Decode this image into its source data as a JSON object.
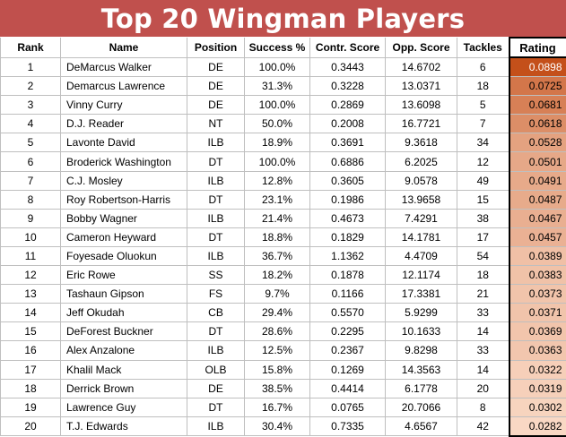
{
  "title": "Top 20 Wingman Players",
  "columns": [
    "Rank",
    "Name",
    "Position",
    "Success %",
    "Contr. Score",
    "Opp. Score",
    "Tackles",
    "Rating"
  ],
  "colors": {
    "banner": "#c0504d",
    "rating_high": "#c4501a",
    "rating_low": "#f9d8c4"
  },
  "rows": [
    {
      "rank": "1",
      "name": "DeMarcus Walker",
      "position": "DE",
      "success": "100.0%",
      "contr": "0.3443",
      "opp": "14.6702",
      "tackles": "6",
      "rating": "0.0898"
    },
    {
      "rank": "2",
      "name": "Demarcus Lawrence",
      "position": "DE",
      "success": "31.3%",
      "contr": "0.3228",
      "opp": "13.0371",
      "tackles": "18",
      "rating": "0.0725"
    },
    {
      "rank": "3",
      "name": "Vinny Curry",
      "position": "DE",
      "success": "100.0%",
      "contr": "0.2869",
      "opp": "13.6098",
      "tackles": "5",
      "rating": "0.0681"
    },
    {
      "rank": "4",
      "name": "D.J. Reader",
      "position": "NT",
      "success": "50.0%",
      "contr": "0.2008",
      "opp": "16.7721",
      "tackles": "7",
      "rating": "0.0618"
    },
    {
      "rank": "5",
      "name": "Lavonte David",
      "position": "ILB",
      "success": "18.9%",
      "contr": "0.3691",
      "opp": "9.3618",
      "tackles": "34",
      "rating": "0.0528"
    },
    {
      "rank": "6",
      "name": "Broderick Washington",
      "position": "DT",
      "success": "100.0%",
      "contr": "0.6886",
      "opp": "6.2025",
      "tackles": "12",
      "rating": "0.0501"
    },
    {
      "rank": "7",
      "name": "C.J. Mosley",
      "position": "ILB",
      "success": "12.8%",
      "contr": "0.3605",
      "opp": "9.0578",
      "tackles": "49",
      "rating": "0.0491"
    },
    {
      "rank": "8",
      "name": "Roy Robertson-Harris",
      "position": "DT",
      "success": "23.1%",
      "contr": "0.1986",
      "opp": "13.9658",
      "tackles": "15",
      "rating": "0.0487"
    },
    {
      "rank": "9",
      "name": "Bobby Wagner",
      "position": "ILB",
      "success": "21.4%",
      "contr": "0.4673",
      "opp": "7.4291",
      "tackles": "38",
      "rating": "0.0467"
    },
    {
      "rank": "10",
      "name": "Cameron Heyward",
      "position": "DT",
      "success": "18.8%",
      "contr": "0.1829",
      "opp": "14.1781",
      "tackles": "17",
      "rating": "0.0457"
    },
    {
      "rank": "11",
      "name": "Foyesade Oluokun",
      "position": "ILB",
      "success": "36.7%",
      "contr": "1.1362",
      "opp": "4.4709",
      "tackles": "54",
      "rating": "0.0389"
    },
    {
      "rank": "12",
      "name": "Eric Rowe",
      "position": "SS",
      "success": "18.2%",
      "contr": "0.1878",
      "opp": "12.1174",
      "tackles": "18",
      "rating": "0.0383"
    },
    {
      "rank": "13",
      "name": "Tashaun Gipson",
      "position": "FS",
      "success": "9.7%",
      "contr": "0.1166",
      "opp": "17.3381",
      "tackles": "21",
      "rating": "0.0373"
    },
    {
      "rank": "14",
      "name": "Jeff Okudah",
      "position": "CB",
      "success": "29.4%",
      "contr": "0.5570",
      "opp": "5.9299",
      "tackles": "33",
      "rating": "0.0371"
    },
    {
      "rank": "15",
      "name": "DeForest Buckner",
      "position": "DT",
      "success": "28.6%",
      "contr": "0.2295",
      "opp": "10.1633",
      "tackles": "14",
      "rating": "0.0369"
    },
    {
      "rank": "16",
      "name": "Alex Anzalone",
      "position": "ILB",
      "success": "12.5%",
      "contr": "0.2367",
      "opp": "9.8298",
      "tackles": "33",
      "rating": "0.0363"
    },
    {
      "rank": "17",
      "name": "Khalil Mack",
      "position": "OLB",
      "success": "15.8%",
      "contr": "0.1269",
      "opp": "14.3563",
      "tackles": "14",
      "rating": "0.0322"
    },
    {
      "rank": "18",
      "name": "Derrick Brown",
      "position": "DE",
      "success": "38.5%",
      "contr": "0.4414",
      "opp": "6.1778",
      "tackles": "20",
      "rating": "0.0319"
    },
    {
      "rank": "19",
      "name": "Lawrence Guy",
      "position": "DT",
      "success": "16.7%",
      "contr": "0.0765",
      "opp": "20.7066",
      "tackles": "8",
      "rating": "0.0302"
    },
    {
      "rank": "20",
      "name": "T.J. Edwards",
      "position": "ILB",
      "success": "30.4%",
      "contr": "0.7335",
      "opp": "4.6567",
      "tackles": "42",
      "rating": "0.0282"
    }
  ]
}
